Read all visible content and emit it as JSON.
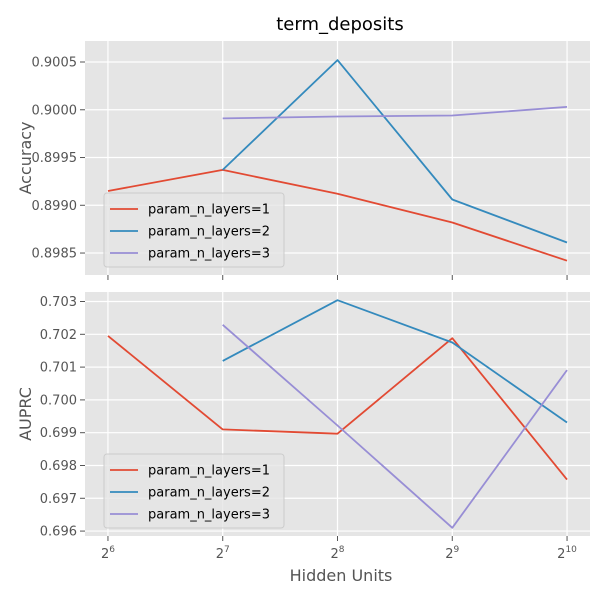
{
  "chart_data": {
    "type": "line",
    "title": "term_deposits",
    "xlabel": "Hidden Units",
    "x": [
      64,
      128,
      256,
      512,
      1024
    ],
    "x_scale": "log2",
    "x_ticks": [
      {
        "base": "2",
        "exp": "6"
      },
      {
        "base": "2",
        "exp": "7"
      },
      {
        "base": "2",
        "exp": "8"
      },
      {
        "base": "2",
        "exp": "9"
      },
      {
        "base": "2",
        "exp": "10"
      }
    ],
    "grid": true,
    "legend_position": "lower-left",
    "panels": [
      {
        "ylabel": "Accuracy",
        "ylim": [
          0.89827,
          0.90072
        ],
        "y_ticks": [
          "0.8985",
          "0.8990",
          "0.8995",
          "0.9000",
          "0.9005"
        ],
        "series": [
          {
            "name": "param_n_layers=1",
            "color": "#E24A33",
            "x": [
              64,
              128,
              256,
              512,
              1024
            ],
            "values": [
              0.89915,
              0.89937,
              0.89912,
              0.89882,
              0.89842
            ]
          },
          {
            "name": "param_n_layers=2",
            "color": "#348ABD",
            "x": [
              128,
              256,
              512,
              1024
            ],
            "values": [
              0.89937,
              0.90052,
              0.89906,
              0.89861
            ]
          },
          {
            "name": "param_n_layers=3",
            "color": "#988ED5",
            "x": [
              128,
              256,
              512,
              1024
            ],
            "values": [
              0.89991,
              0.89993,
              0.89994,
              0.90003
            ]
          }
        ]
      },
      {
        "ylabel": "AUPRC",
        "ylim": [
          0.69585,
          0.70329
        ],
        "y_ticks": [
          "0.696",
          "0.697",
          "0.698",
          "0.699",
          "0.700",
          "0.701",
          "0.702",
          "0.703"
        ],
        "series": [
          {
            "name": "param_n_layers=1",
            "color": "#E24A33",
            "x": [
              64,
              128,
              256,
              512,
              1024
            ],
            "values": [
              0.70195,
              0.6991,
              0.69897,
              0.70188,
              0.69757
            ]
          },
          {
            "name": "param_n_layers=2",
            "color": "#348ABD",
            "x": [
              128,
              256,
              512,
              1024
            ],
            "values": [
              0.70119,
              0.70304,
              0.70175,
              0.69931
            ]
          },
          {
            "name": "param_n_layers=3",
            "color": "#988ED5",
            "x": [
              128,
              256,
              512,
              1024
            ],
            "values": [
              0.70229,
              0.69922,
              0.6961,
              0.70091
            ]
          }
        ]
      }
    ]
  }
}
